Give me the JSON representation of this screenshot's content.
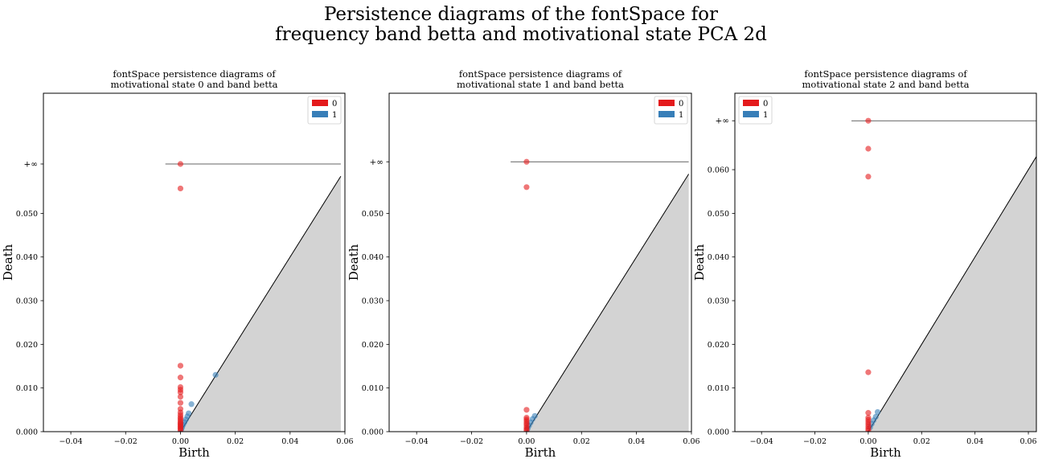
{
  "figure": {
    "title_lines": [
      "Persistence diagrams of the fontSpace for",
      "frequency band betta and motivational state PCA 2d"
    ]
  },
  "colors": {
    "dim0": "#e41a1c",
    "dim1": "#377eb8",
    "diagonal_fill": "#d3d3d3",
    "line": "#000000"
  },
  "chart_data": [
    {
      "type": "scatter",
      "title_lines": [
        "fontSpace persistence diagrams of",
        "motivational state 0 and band betta"
      ],
      "xlabel": "Birth",
      "ylabel": "Death",
      "xlim": [
        -0.05,
        0.06
      ],
      "ylim": [
        0,
        0.0775
      ],
      "xticks": [
        -0.04,
        -0.02,
        0.0,
        0.02,
        0.04,
        0.06
      ],
      "xtick_labels": [
        "−0.04",
        "−0.02",
        "0.00",
        "0.02",
        "0.04",
        "0.06"
      ],
      "yticks": [
        0.0,
        0.01,
        0.02,
        0.03,
        0.04,
        0.05
      ],
      "ytick_labels": [
        "0.000",
        "0.010",
        "0.020",
        "0.030",
        "0.040",
        "0.050"
      ],
      "infinity_label": "+∞",
      "infinity_value": 0.0613,
      "infinity_line_x": [
        -0.0055,
        0.0585
      ],
      "diagonal_max": 0.0585,
      "legend": {
        "position": "top-right",
        "entries": [
          "0",
          "1"
        ]
      },
      "series": [
        {
          "name": "0",
          "x": [
            0,
            0,
            0,
            0,
            0,
            0,
            0,
            0,
            0,
            0,
            0,
            0,
            0,
            0,
            0,
            0,
            0,
            0,
            0,
            0,
            0,
            0
          ],
          "y": [
            0.0613,
            0.0557,
            0.0151,
            0.0124,
            0.0102,
            0.0096,
            0.009,
            0.008,
            0.0066,
            0.0052,
            0.0044,
            0.0038,
            0.0033,
            0.0029,
            0.0025,
            0.0021,
            0.0018,
            0.0015,
            0.0012,
            0.0009,
            0.0006,
            0.0003
          ]
        },
        {
          "name": "1",
          "x": [
            0.0128,
            0.004,
            0.003,
            0.0025,
            0.002,
            0.0015,
            0.001,
            0.0006,
            0.0003
          ],
          "y": [
            0.013,
            0.0063,
            0.0042,
            0.0035,
            0.0028,
            0.0022,
            0.0016,
            0.001,
            0.0005
          ]
        }
      ]
    },
    {
      "type": "scatter",
      "title_lines": [
        "fontSpace persistence diagrams of",
        "motivational state 1 and band betta"
      ],
      "xlabel": "Birth",
      "ylabel": "Death",
      "xlim": [
        -0.05,
        0.06
      ],
      "ylim": [
        0,
        0.0775
      ],
      "xticks": [
        -0.04,
        -0.02,
        0.0,
        0.02,
        0.04,
        0.06
      ],
      "xtick_labels": [
        "−0.04",
        "−0.02",
        "0.00",
        "0.02",
        "0.04",
        "0.06"
      ],
      "yticks": [
        0.0,
        0.01,
        0.02,
        0.03,
        0.04,
        0.05
      ],
      "ytick_labels": [
        "0.000",
        "0.010",
        "0.020",
        "0.030",
        "0.040",
        "0.050"
      ],
      "infinity_label": "+∞",
      "infinity_value": 0.0618,
      "infinity_line_x": [
        -0.0058,
        0.059
      ],
      "diagonal_max": 0.059,
      "legend": {
        "position": "top-right",
        "entries": [
          "0",
          "1"
        ]
      },
      "series": [
        {
          "name": "0",
          "x": [
            0,
            0,
            0,
            0,
            0,
            0,
            0,
            0,
            0,
            0,
            0
          ],
          "y": [
            0.0618,
            0.056,
            0.005,
            0.0032,
            0.0028,
            0.0024,
            0.0019,
            0.0015,
            0.001,
            0.0006,
            0.0003
          ]
        },
        {
          "name": "1",
          "x": [
            0.003,
            0.0022,
            0.0015,
            0.0009,
            0.0004
          ],
          "y": [
            0.0036,
            0.0029,
            0.0021,
            0.0014,
            0.0007
          ]
        }
      ]
    },
    {
      "type": "scatter",
      "title_lines": [
        "fontSpace persistence diagrams of",
        "motivational state 2 and band betta"
      ],
      "xlabel": "Birth",
      "ylabel": "Death",
      "xlim": [
        -0.05,
        0.063
      ],
      "ylim": [
        0,
        0.0775
      ],
      "xticks": [
        -0.04,
        -0.02,
        0.0,
        0.02,
        0.04,
        0.06
      ],
      "xtick_labels": [
        "−0.04",
        "−0.02",
        "0.00",
        "0.02",
        "0.04",
        "0.06"
      ],
      "yticks": [
        0.0,
        0.01,
        0.02,
        0.03,
        0.04,
        0.05,
        0.06
      ],
      "ytick_labels": [
        "0.000",
        "0.010",
        "0.020",
        "0.030",
        "0.040",
        "0.050",
        "0.060"
      ],
      "infinity_label": "+∞",
      "infinity_value": 0.0712,
      "infinity_line_x": [
        -0.0063,
        0.063
      ],
      "diagonal_max": 0.063,
      "legend": {
        "position": "top-left",
        "entries": [
          "0",
          "1"
        ]
      },
      "series": [
        {
          "name": "0",
          "x": [
            0,
            0,
            0,
            0,
            0,
            0,
            0,
            0,
            0,
            0,
            0,
            0
          ],
          "y": [
            0.0712,
            0.0648,
            0.0584,
            0.0136,
            0.0043,
            0.0032,
            0.0027,
            0.0022,
            0.0017,
            0.0012,
            0.0007,
            0.0003
          ]
        },
        {
          "name": "1",
          "x": [
            0.0035,
            0.0028,
            0.002,
            0.0013,
            0.0007
          ],
          "y": [
            0.0045,
            0.0034,
            0.0026,
            0.0018,
            0.001
          ]
        }
      ]
    }
  ]
}
